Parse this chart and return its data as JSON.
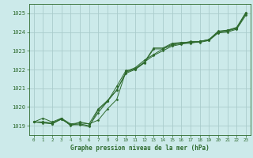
{
  "title": "Graphe pression niveau de la mer (hPa)",
  "background_color": "#cceaea",
  "grid_color": "#aacccc",
  "line_color": "#2d6a2d",
  "text_color": "#2d6a2d",
  "xlim": [
    -0.5,
    23.5
  ],
  "ylim": [
    1018.5,
    1025.5
  ],
  "yticks": [
    1019,
    1020,
    1021,
    1022,
    1023,
    1024,
    1025
  ],
  "xticks": [
    0,
    1,
    2,
    3,
    4,
    5,
    6,
    7,
    8,
    9,
    10,
    11,
    12,
    13,
    14,
    15,
    16,
    17,
    18,
    19,
    20,
    21,
    22,
    23
  ],
  "series": [
    [
      1019.2,
      1019.4,
      1019.2,
      1019.4,
      1019.0,
      1019.2,
      1019.1,
      1019.3,
      1019.9,
      1020.4,
      1021.9,
      1022.1,
      1022.5,
      1022.8,
      1023.1,
      1023.3,
      1023.4,
      1023.5,
      1023.5,
      1023.6,
      1024.0,
      1024.1,
      1024.2,
      1025.0
    ],
    [
      1019.2,
      1019.2,
      1019.15,
      1019.35,
      1019.05,
      1019.1,
      1019.0,
      1019.7,
      1020.3,
      1021.1,
      1021.95,
      1022.0,
      1022.4,
      1022.75,
      1023.0,
      1023.25,
      1023.35,
      1023.45,
      1023.45,
      1023.55,
      1023.95,
      1024.0,
      1024.15,
      1024.9
    ],
    [
      1019.2,
      1019.15,
      1019.1,
      1019.35,
      1019.05,
      1019.05,
      1018.95,
      1019.85,
      1020.3,
      1020.9,
      1021.8,
      1022.0,
      1022.35,
      1023.1,
      1023.1,
      1023.35,
      1023.4,
      1023.4,
      1023.5,
      1023.55,
      1024.0,
      1024.05,
      1024.2,
      1025.0
    ],
    [
      1019.2,
      1019.2,
      1019.1,
      1019.4,
      1019.1,
      1019.15,
      1019.1,
      1019.9,
      1020.35,
      1020.9,
      1021.85,
      1022.05,
      1022.4,
      1023.15,
      1023.15,
      1023.4,
      1023.45,
      1023.45,
      1023.5,
      1023.6,
      1024.05,
      1024.1,
      1024.25,
      1025.05
    ]
  ]
}
